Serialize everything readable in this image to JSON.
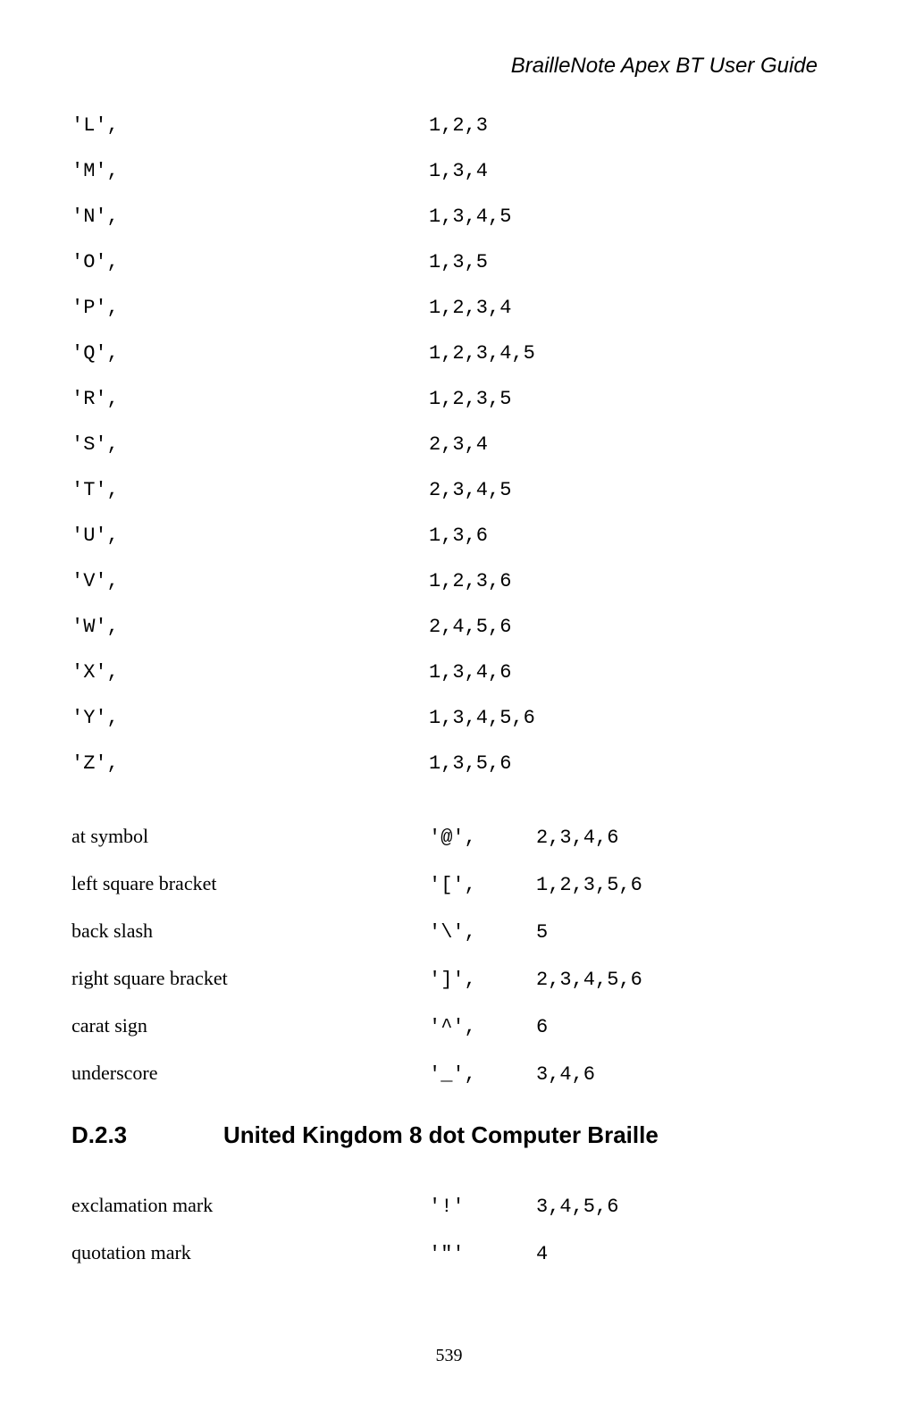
{
  "header": "BrailleNote Apex BT User Guide",
  "letters": [
    {
      "char": "'L',",
      "dots": "1,2,3"
    },
    {
      "char": "'M',",
      "dots": "1,3,4"
    },
    {
      "char": "'N',",
      "dots": "1,3,4,5"
    },
    {
      "char": "'O',",
      "dots": "1,3,5"
    },
    {
      "char": "'P',",
      "dots": "1,2,3,4"
    },
    {
      "char": "'Q',",
      "dots": "1,2,3,4,5"
    },
    {
      "char": "'R',",
      "dots": "1,2,3,5"
    },
    {
      "char": "'S',",
      "dots": "2,3,4"
    },
    {
      "char": "'T',",
      "dots": "2,3,4,5"
    },
    {
      "char": "'U',",
      "dots": "1,3,6"
    },
    {
      "char": "'V',",
      "dots": "1,2,3,6"
    },
    {
      "char": "'W',",
      "dots": "2,4,5,6"
    },
    {
      "char": "'X',",
      "dots": "1,3,4,6"
    },
    {
      "char": "'Y',",
      "dots": "1,3,4,5,6"
    },
    {
      "char": "'Z',",
      "dots": "1,3,5,6"
    }
  ],
  "symbols1": [
    {
      "name": "at symbol",
      "char": "'@',",
      "dots": "2,3,4,6"
    },
    {
      "name": "left square bracket",
      "char": "'[',",
      "dots": "1,2,3,5,6"
    },
    {
      "name": "back slash",
      "char": "'\\',",
      "dots": "5"
    },
    {
      "name": "right square bracket",
      "char": "']',",
      "dots": "2,3,4,5,6"
    },
    {
      "name": "carat sign",
      "char": "'^',",
      "dots": "6"
    },
    {
      "name": "underscore",
      "char": "'_',",
      "dots": "3,4,6"
    }
  ],
  "heading": {
    "num": "D.2.3",
    "title": "United Kingdom 8 dot Computer Braille"
  },
  "symbols2": [
    {
      "name": "exclamation mark",
      "char": "'!'",
      "dots": "3,4,5,6"
    },
    {
      "name": "quotation mark",
      "char": "'\"'",
      "dots": "4"
    }
  ],
  "pagenum": "539"
}
